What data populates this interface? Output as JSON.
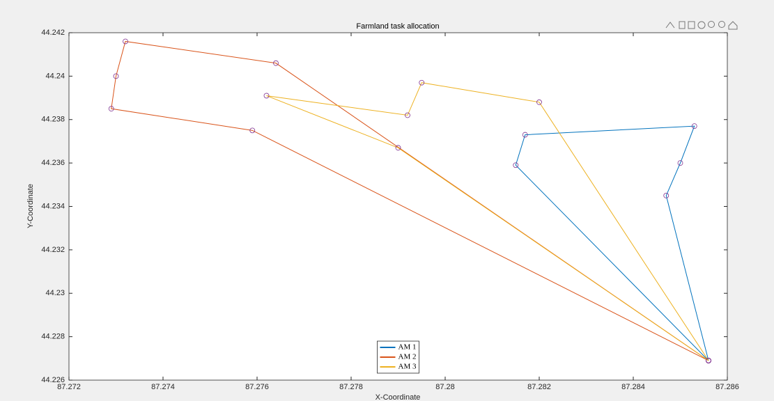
{
  "chart_data": {
    "type": "line",
    "title": "Farmland task allocation",
    "xlabel": "X-Coordinate",
    "ylabel": "Y-Coordinate",
    "xlim": [
      87.272,
      87.286
    ],
    "xticks": [
      87.272,
      87.274,
      87.276,
      87.278,
      87.28,
      87.282,
      87.284,
      87.286
    ],
    "ylim": [
      44.226,
      44.242
    ],
    "yticks": [
      44.226,
      44.228,
      44.23,
      44.232,
      44.234,
      44.236,
      44.238,
      44.24,
      44.242
    ],
    "grid": false,
    "legend": "south",
    "marker_color": "#7e2f8e",
    "series": [
      {
        "name": "AM 1",
        "color": "#0072bd",
        "x": [
          87.2856,
          87.2815,
          87.2817,
          87.2853,
          87.285,
          87.2847,
          87.2856
        ],
        "values": [
          44.2269,
          44.2359,
          44.2373,
          44.2377,
          44.236,
          44.2345,
          44.2269
        ]
      },
      {
        "name": "AM 2",
        "color": "#d95319",
        "x": [
          87.2856,
          87.2764,
          87.2732,
          87.273,
          87.2729,
          87.2759,
          87.2856
        ],
        "values": [
          44.2269,
          44.2406,
          44.2416,
          44.24,
          44.2385,
          44.2375,
          44.2269
        ]
      },
      {
        "name": "AM 3",
        "color": "#edb120",
        "x": [
          87.2856,
          87.282,
          87.2795,
          87.2792,
          87.2762,
          87.279,
          87.2856
        ],
        "values": [
          44.2269,
          44.2388,
          44.2397,
          44.2382,
          44.2391,
          44.2367,
          44.2269
        ]
      }
    ]
  }
}
